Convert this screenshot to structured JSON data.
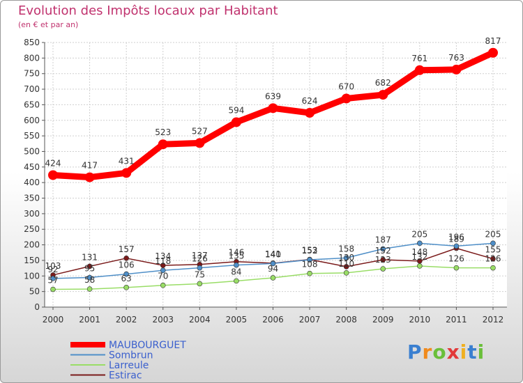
{
  "chart_data": {
    "type": "line",
    "title": "Evolution des Impôts locaux par Habitant",
    "subtitle": "(en € et par an)",
    "xlabel": "",
    "ylabel": "",
    "ylim": [
      0,
      850
    ],
    "ytick_step": 50,
    "grid": true,
    "legend_position": "bottom-left",
    "x": [
      "2000",
      "2001",
      "2002",
      "2003",
      "2004",
      "2005",
      "2006",
      "2007",
      "2008",
      "2009",
      "2010",
      "2011",
      "2012"
    ],
    "series": [
      {
        "name": "MAUBOURGUET",
        "color": "#ff0000",
        "values": [
          424,
          417,
          431,
          523,
          527,
          594,
          639,
          624,
          670,
          682,
          761,
          763,
          817
        ]
      },
      {
        "name": "Sombrun",
        "color": "#4f8fc8",
        "values": [
          92,
          95,
          106,
          118,
          126,
          135,
          140,
          152,
          158,
          187,
          205,
          196,
          205
        ]
      },
      {
        "name": "Larreule",
        "color": "#99dd66",
        "values": [
          57,
          58,
          63,
          70,
          75,
          84,
          94,
          108,
          110,
          123,
          132,
          126,
          126
        ]
      },
      {
        "name": "Estirac",
        "color": "#7a1a1a",
        "values": [
          103,
          131,
          157,
          134,
          137,
          146,
          141,
          153,
          130,
          152,
          148,
          189,
          155
        ]
      }
    ]
  },
  "logo": {
    "letters": [
      "P",
      "r",
      "o",
      "x",
      "i",
      "t",
      "i"
    ],
    "colors": [
      "#3a7fd0",
      "#f08a1c",
      "#6abf3a",
      "#e23a3a",
      "#f0b020",
      "#3a7fd0",
      "#6abf3a"
    ]
  }
}
